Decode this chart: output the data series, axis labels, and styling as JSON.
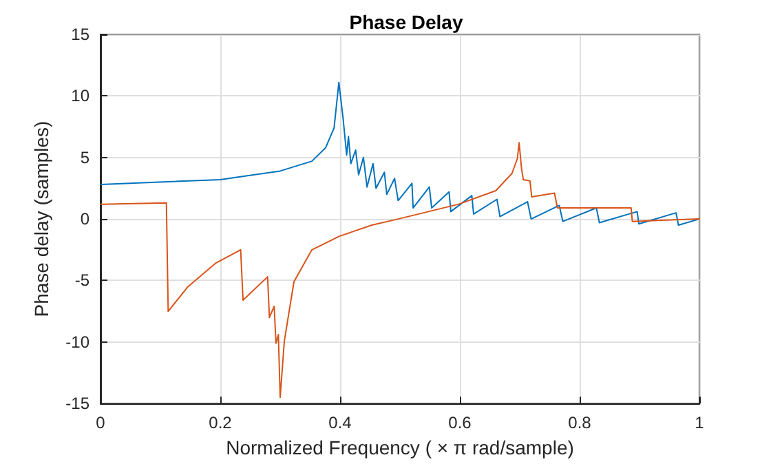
{
  "chart_data": {
    "type": "line",
    "title": "Phase Delay",
    "xlabel": "Normalized Frequency ( × π rad/sample)",
    "ylabel": "Phase delay (samples)",
    "xlim": [
      0,
      1
    ],
    "xticks": [
      0,
      0.2,
      0.4,
      0.6,
      0.8,
      1
    ],
    "ylim": [
      -15,
      15
    ],
    "yticks": [
      -15,
      -10,
      -5,
      0,
      5,
      10,
      15
    ],
    "grid": true,
    "marker": "none",
    "line_style": "solid",
    "series": [
      {
        "color": "#0072bd",
        "x": [
          0,
          0.2,
          0.3,
          0.353,
          0.376,
          0.39,
          0.398,
          0.405,
          0.411,
          0.414,
          0.418,
          0.426,
          0.431,
          0.439,
          0.445,
          0.455,
          0.46,
          0.474,
          0.478,
          0.491,
          0.497,
          0.52,
          0.522,
          0.549,
          0.553,
          0.582,
          0.585,
          0.62,
          0.623,
          0.662,
          0.667,
          0.713,
          0.719,
          0.766,
          0.772,
          0.828,
          0.833,
          0.896,
          0.899,
          0.961,
          0.965,
          1
        ],
        "values": [
          2.8,
          3.2,
          3.9,
          4.7,
          5.8,
          7.4,
          11.1,
          8.2,
          5.2,
          6.7,
          4.5,
          5.6,
          3.6,
          5,
          2.6,
          4.5,
          2.5,
          3.8,
          2,
          3.3,
          1.5,
          2.9,
          0.9,
          2.6,
          0.9,
          2.2,
          0.6,
          1.9,
          0.4,
          1.6,
          0.2,
          1.4,
          0,
          1.1,
          -0.2,
          0.9,
          -0.3,
          0.6,
          -0.4,
          0.5,
          -0.5,
          0
        ]
      },
      {
        "color": "#d95319",
        "x": [
          0,
          0.11,
          0.113,
          0.146,
          0.192,
          0.234,
          0.238,
          0.279,
          0.282,
          0.29,
          0.293,
          0.297,
          0.3,
          0.307,
          0.323,
          0.353,
          0.399,
          0.453,
          0.497,
          0.598,
          0.66,
          0.687,
          0.696,
          0.699,
          0.703,
          0.706,
          0.717,
          0.72,
          0.758,
          0.763,
          0.886,
          0.888,
          0.936,
          1
        ],
        "values": [
          1.2,
          1.3,
          -7.5,
          -5.5,
          -3.6,
          -2.5,
          -6.6,
          -4.7,
          -8,
          -7.1,
          -10.1,
          -9.4,
          -14.5,
          -9.9,
          -5.1,
          -2.5,
          -1.4,
          -0.5,
          0,
          1.2,
          2.3,
          3.7,
          4.9,
          6.2,
          4.1,
          3.2,
          3.1,
          1.8,
          2.1,
          0.9,
          0.9,
          -0.2,
          -0.1,
          0
        ]
      }
    ]
  }
}
